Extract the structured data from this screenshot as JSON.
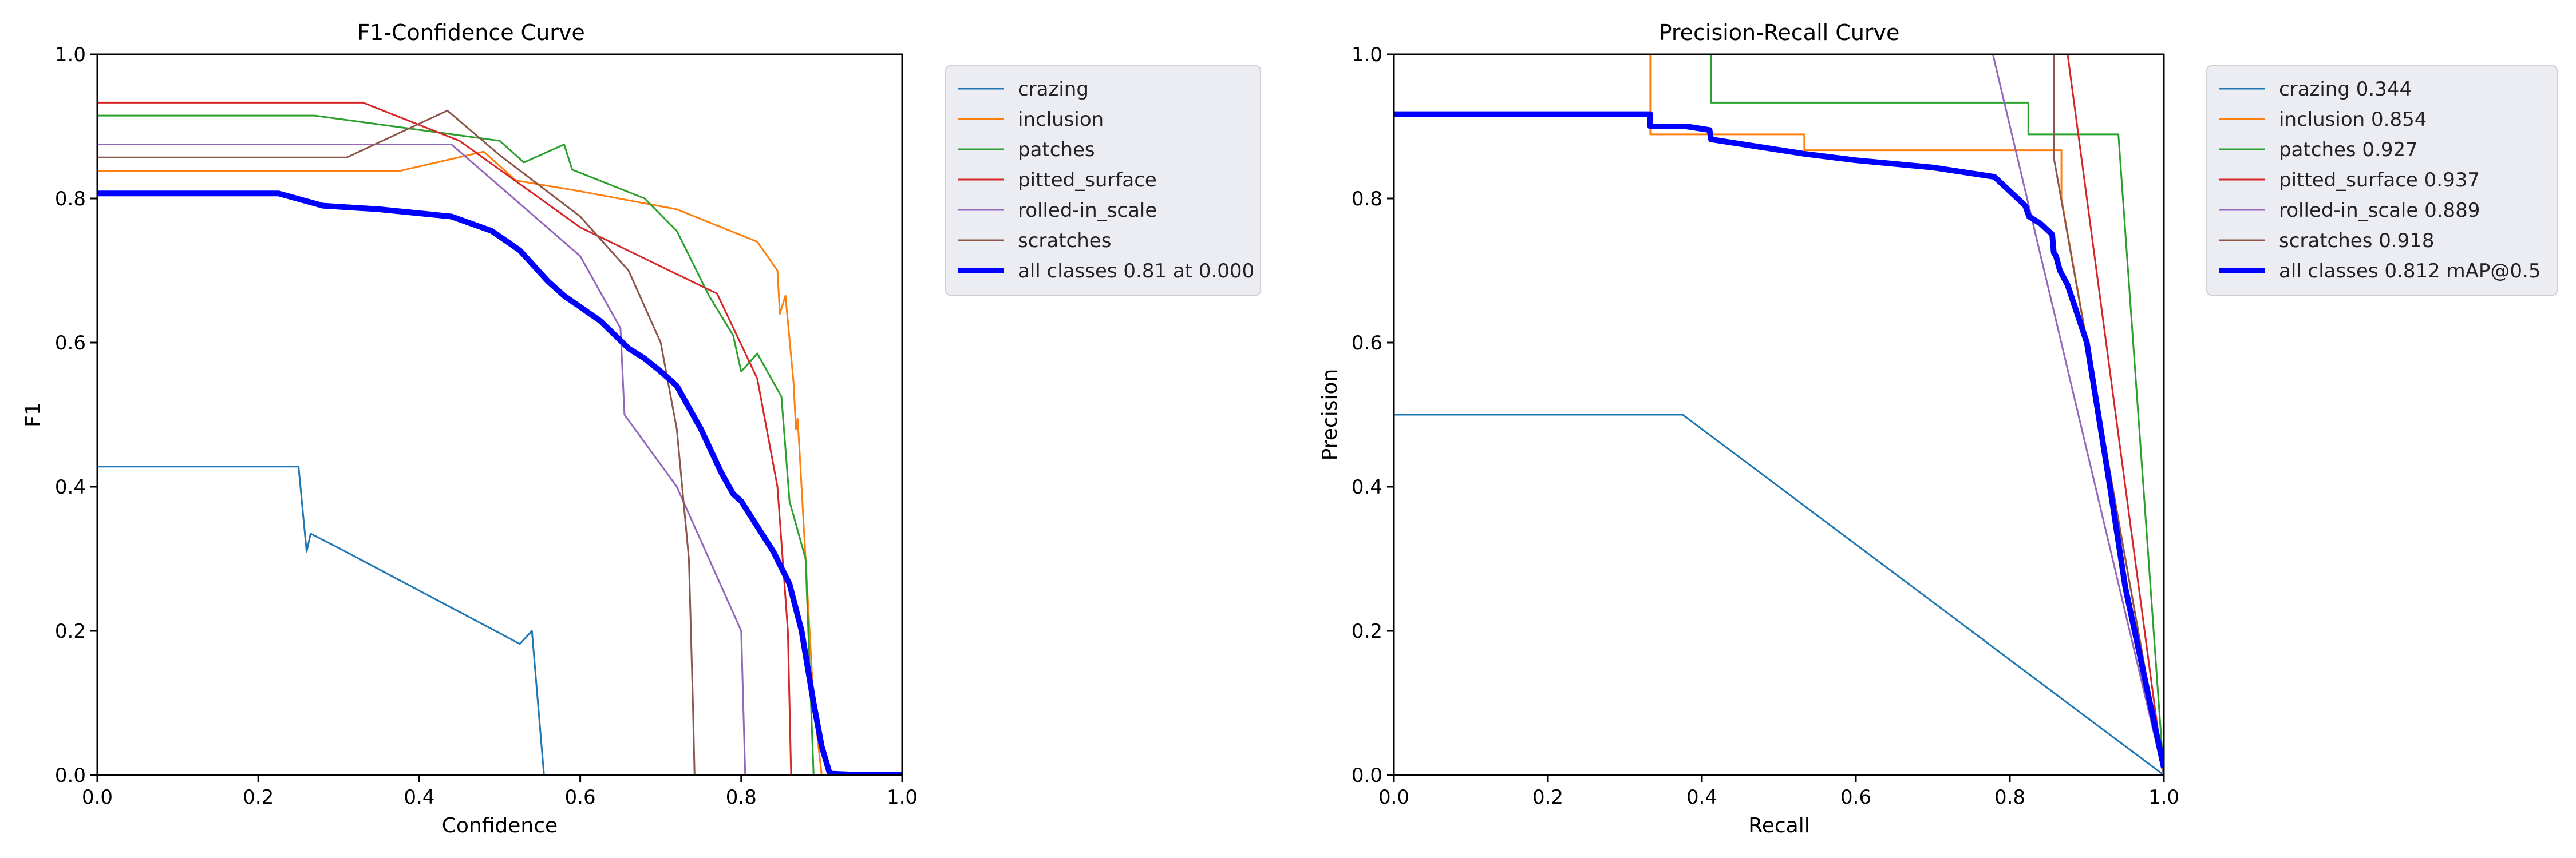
{
  "colors": {
    "crazing": "#1f77b4",
    "inclusion": "#ff7f0e",
    "patches": "#2ca02c",
    "pitted_surface": "#d62728",
    "rolled_in_scale": "#9467bd",
    "scratches": "#8c564b",
    "all_classes": "#0000ff",
    "legend_bg": "#ececf3"
  },
  "chart_data": [
    {
      "type": "line",
      "title": "F1-Confidence Curve",
      "xlabel": "Confidence",
      "ylabel": "F1",
      "xlim": [
        0,
        1
      ],
      "ylim": [
        0,
        1
      ],
      "xticks": [
        "0.0",
        "0.2",
        "0.4",
        "0.6",
        "0.8",
        "1.0"
      ],
      "yticks": [
        "0.0",
        "0.2",
        "0.4",
        "0.6",
        "0.8",
        "1.0"
      ],
      "legend_position": "outside-right-top",
      "series": [
        {
          "key": "crazing",
          "name": "crazing",
          "points": [
            [
              0,
              0.428
            ],
            [
              0.25,
              0.428
            ],
            [
              0.26,
              0.31
            ],
            [
              0.265,
              0.335
            ],
            [
              0.3,
              0.315
            ],
            [
              0.525,
              0.182
            ],
            [
              0.54,
              0.2
            ],
            [
              0.555,
              0
            ],
            [
              1.0,
              0
            ]
          ]
        },
        {
          "key": "inclusion",
          "name": "inclusion",
          "points": [
            [
              0,
              0.838
            ],
            [
              0.375,
              0.838
            ],
            [
              0.48,
              0.865
            ],
            [
              0.52,
              0.825
            ],
            [
              0.6,
              0.81
            ],
            [
              0.72,
              0.785
            ],
            [
              0.82,
              0.74
            ],
            [
              0.845,
              0.7
            ],
            [
              0.848,
              0.64
            ],
            [
              0.855,
              0.665
            ],
            [
              0.865,
              0.545
            ],
            [
              0.868,
              0.48
            ],
            [
              0.87,
              0.495
            ],
            [
              0.872,
              0.46
            ],
            [
              0.89,
              0.1
            ],
            [
              0.9,
              0
            ]
          ]
        },
        {
          "key": "patches",
          "name": "patches",
          "points": [
            [
              0,
              0.915
            ],
            [
              0.27,
              0.915
            ],
            [
              0.5,
              0.88
            ],
            [
              0.53,
              0.85
            ],
            [
              0.58,
              0.875
            ],
            [
              0.59,
              0.84
            ],
            [
              0.68,
              0.8
            ],
            [
              0.72,
              0.755
            ],
            [
              0.76,
              0.665
            ],
            [
              0.79,
              0.61
            ],
            [
              0.8,
              0.56
            ],
            [
              0.82,
              0.585
            ],
            [
              0.85,
              0.525
            ],
            [
              0.86,
              0.38
            ],
            [
              0.88,
              0.3
            ],
            [
              0.89,
              0
            ]
          ]
        },
        {
          "key": "pitted_surface",
          "name": "pitted_surface",
          "points": [
            [
              0,
              0.933
            ],
            [
              0.33,
              0.933
            ],
            [
              0.45,
              0.88
            ],
            [
              0.6,
              0.76
            ],
            [
              0.77,
              0.668
            ],
            [
              0.82,
              0.55
            ],
            [
              0.845,
              0.4
            ],
            [
              0.858,
              0.2
            ],
            [
              0.862,
              0
            ]
          ]
        },
        {
          "key": "rolled_in_scale",
          "name": "rolled-in_scale",
          "points": [
            [
              0,
              0.875
            ],
            [
              0.44,
              0.875
            ],
            [
              0.6,
              0.72
            ],
            [
              0.65,
              0.62
            ],
            [
              0.655,
              0.5
            ],
            [
              0.72,
              0.4
            ],
            [
              0.8,
              0.2
            ],
            [
              0.805,
              0
            ]
          ]
        },
        {
          "key": "scratches",
          "name": "scratches",
          "points": [
            [
              0,
              0.857
            ],
            [
              0.31,
              0.857
            ],
            [
              0.435,
              0.922
            ],
            [
              0.5,
              0.86
            ],
            [
              0.6,
              0.775
            ],
            [
              0.66,
              0.7
            ],
            [
              0.7,
              0.6
            ],
            [
              0.72,
              0.48
            ],
            [
              0.735,
              0.3
            ],
            [
              0.74,
              0.1
            ],
            [
              0.742,
              0
            ]
          ]
        },
        {
          "key": "all_classes",
          "name": "all classes 0.81 at 0.000",
          "thick": true,
          "points": [
            [
              0,
              0.807
            ],
            [
              0.225,
              0.807
            ],
            [
              0.28,
              0.79
            ],
            [
              0.35,
              0.785
            ],
            [
              0.44,
              0.775
            ],
            [
              0.49,
              0.755
            ],
            [
              0.525,
              0.728
            ],
            [
              0.56,
              0.685
            ],
            [
              0.58,
              0.665
            ],
            [
              0.625,
              0.63
            ],
            [
              0.66,
              0.592
            ],
            [
              0.68,
              0.578
            ],
            [
              0.7,
              0.56
            ],
            [
              0.72,
              0.54
            ],
            [
              0.75,
              0.48
            ],
            [
              0.775,
              0.42
            ],
            [
              0.79,
              0.39
            ],
            [
              0.8,
              0.38
            ],
            [
              0.82,
              0.345
            ],
            [
              0.84,
              0.31
            ],
            [
              0.86,
              0.265
            ],
            [
              0.875,
              0.2
            ],
            [
              0.89,
              0.1
            ],
            [
              0.9,
              0.04
            ],
            [
              0.91,
              0.002
            ],
            [
              0.95,
              0
            ],
            [
              1.0,
              0
            ]
          ]
        }
      ]
    },
    {
      "type": "line",
      "title": "Precision-Recall Curve",
      "xlabel": "Recall",
      "ylabel": "Precision",
      "xlim": [
        0,
        1
      ],
      "ylim": [
        0,
        1
      ],
      "xticks": [
        "0.0",
        "0.2",
        "0.4",
        "0.6",
        "0.8",
        "1.0"
      ],
      "yticks": [
        "0.0",
        "0.2",
        "0.4",
        "0.6",
        "0.8",
        "1.0"
      ],
      "legend_position": "outside-right-top",
      "series": [
        {
          "key": "crazing",
          "name": "crazing 0.344",
          "points": [
            [
              0,
              0.5
            ],
            [
              0.375,
              0.5
            ],
            [
              1.0,
              0
            ]
          ]
        },
        {
          "key": "inclusion",
          "name": "inclusion 0.854",
          "points": [
            [
              0.333,
              1.0
            ],
            [
              0.333,
              0.889
            ],
            [
              0.533,
              0.889
            ],
            [
              0.533,
              0.867
            ],
            [
              0.867,
              0.867
            ],
            [
              0.867,
              0.8
            ],
            [
              1.0,
              0
            ]
          ]
        },
        {
          "key": "patches",
          "name": "patches 0.927",
          "points": [
            [
              0.412,
              1.0
            ],
            [
              0.412,
              0.933
            ],
            [
              0.824,
              0.933
            ],
            [
              0.824,
              0.889
            ],
            [
              0.941,
              0.889
            ],
            [
              1.0,
              0
            ]
          ]
        },
        {
          "key": "pitted_surface",
          "name": "pitted_surface 0.937",
          "points": [
            [
              0.875,
              1.0
            ],
            [
              1.0,
              0
            ]
          ]
        },
        {
          "key": "rolled_in_scale",
          "name": "rolled-in_scale 0.889",
          "points": [
            [
              0.778,
              1.0
            ],
            [
              1.0,
              0
            ]
          ]
        },
        {
          "key": "scratches",
          "name": "scratches 0.918",
          "points": [
            [
              0.857,
              1.0
            ],
            [
              0.857,
              0.857
            ],
            [
              1.0,
              0
            ]
          ]
        },
        {
          "key": "all_classes",
          "name": "all classes 0.812 mAP@0.5",
          "thick": true,
          "points": [
            [
              0,
              0.917
            ],
            [
              0.333,
              0.917
            ],
            [
              0.333,
              0.9
            ],
            [
              0.38,
              0.9
            ],
            [
              0.41,
              0.895
            ],
            [
              0.412,
              0.882
            ],
            [
              0.533,
              0.862
            ],
            [
              0.6,
              0.853
            ],
            [
              0.7,
              0.843
            ],
            [
              0.78,
              0.83
            ],
            [
              0.8,
              0.81
            ],
            [
              0.82,
              0.79
            ],
            [
              0.825,
              0.775
            ],
            [
              0.84,
              0.765
            ],
            [
              0.855,
              0.75
            ],
            [
              0.857,
              0.725
            ],
            [
              0.86,
              0.72
            ],
            [
              0.865,
              0.7
            ],
            [
              0.875,
              0.68
            ],
            [
              0.9,
              0.6
            ],
            [
              0.93,
              0.4
            ],
            [
              0.95,
              0.26
            ],
            [
              1.0,
              0.01
            ]
          ]
        }
      ]
    }
  ]
}
